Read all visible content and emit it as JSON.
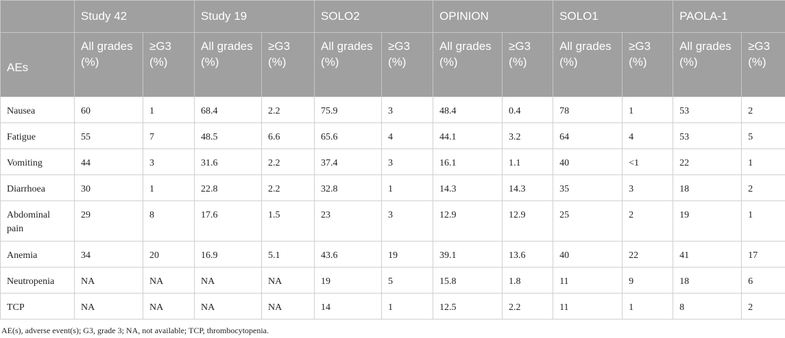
{
  "table": {
    "row_header_label": "AEs",
    "studies": [
      "Study 42",
      "Study 19",
      "SOLO2",
      "OPINION",
      "SOLO1",
      "PAOLA-1"
    ],
    "sub_headers": {
      "all_grades": "All grades (%)",
      "g3": "≥G3 (%)"
    },
    "rows": [
      {
        "ae": "Nausea",
        "values": [
          "60",
          "1",
          "68.4",
          "2.2",
          "75.9",
          "3",
          "48.4",
          "0.4",
          "78",
          "1",
          "53",
          "2"
        ]
      },
      {
        "ae": "Fatigue",
        "values": [
          "55",
          "7",
          "48.5",
          "6.6",
          "65.6",
          "4",
          "44.1",
          "3.2",
          "64",
          "4",
          "53",
          "5"
        ]
      },
      {
        "ae": "Vomiting",
        "values": [
          "44",
          "3",
          "31.6",
          "2.2",
          "37.4",
          "3",
          "16.1",
          "1.1",
          "40",
          "<1",
          "22",
          "1"
        ]
      },
      {
        "ae": "Diarrhoea",
        "values": [
          "30",
          "1",
          "22.8",
          "2.2",
          "32.8",
          "1",
          "14.3",
          "14.3",
          "35",
          "3",
          "18",
          "2"
        ]
      },
      {
        "ae": "Abdominal pain",
        "values": [
          "29",
          "8",
          "17.6",
          "1.5",
          "23",
          "3",
          "12.9",
          "12.9",
          "25",
          "2",
          "19",
          "1"
        ]
      },
      {
        "ae": "Anemia",
        "values": [
          "34",
          "20",
          "16.9",
          "5.1",
          "43.6",
          "19",
          "39.1",
          "13.6",
          "40",
          "22",
          "41",
          "17"
        ]
      },
      {
        "ae": "Neutropenia",
        "values": [
          "NA",
          "NA",
          "NA",
          "NA",
          "19",
          "5",
          "15.8",
          "1.8",
          "11",
          "9",
          "18",
          "6"
        ]
      },
      {
        "ae": "TCP",
        "values": [
          "NA",
          "NA",
          "NA",
          "NA",
          "14",
          "1",
          "12.5",
          "2.2",
          "11",
          "1",
          "8",
          "2"
        ]
      }
    ]
  },
  "footnote": "AE(s), adverse event(s); G3, grade 3; NA, not available; TCP, thrombocytopenia.",
  "colors": {
    "header_bg": "#a0a0a0",
    "header_text": "#ffffff",
    "border": "#cfcfcf"
  }
}
